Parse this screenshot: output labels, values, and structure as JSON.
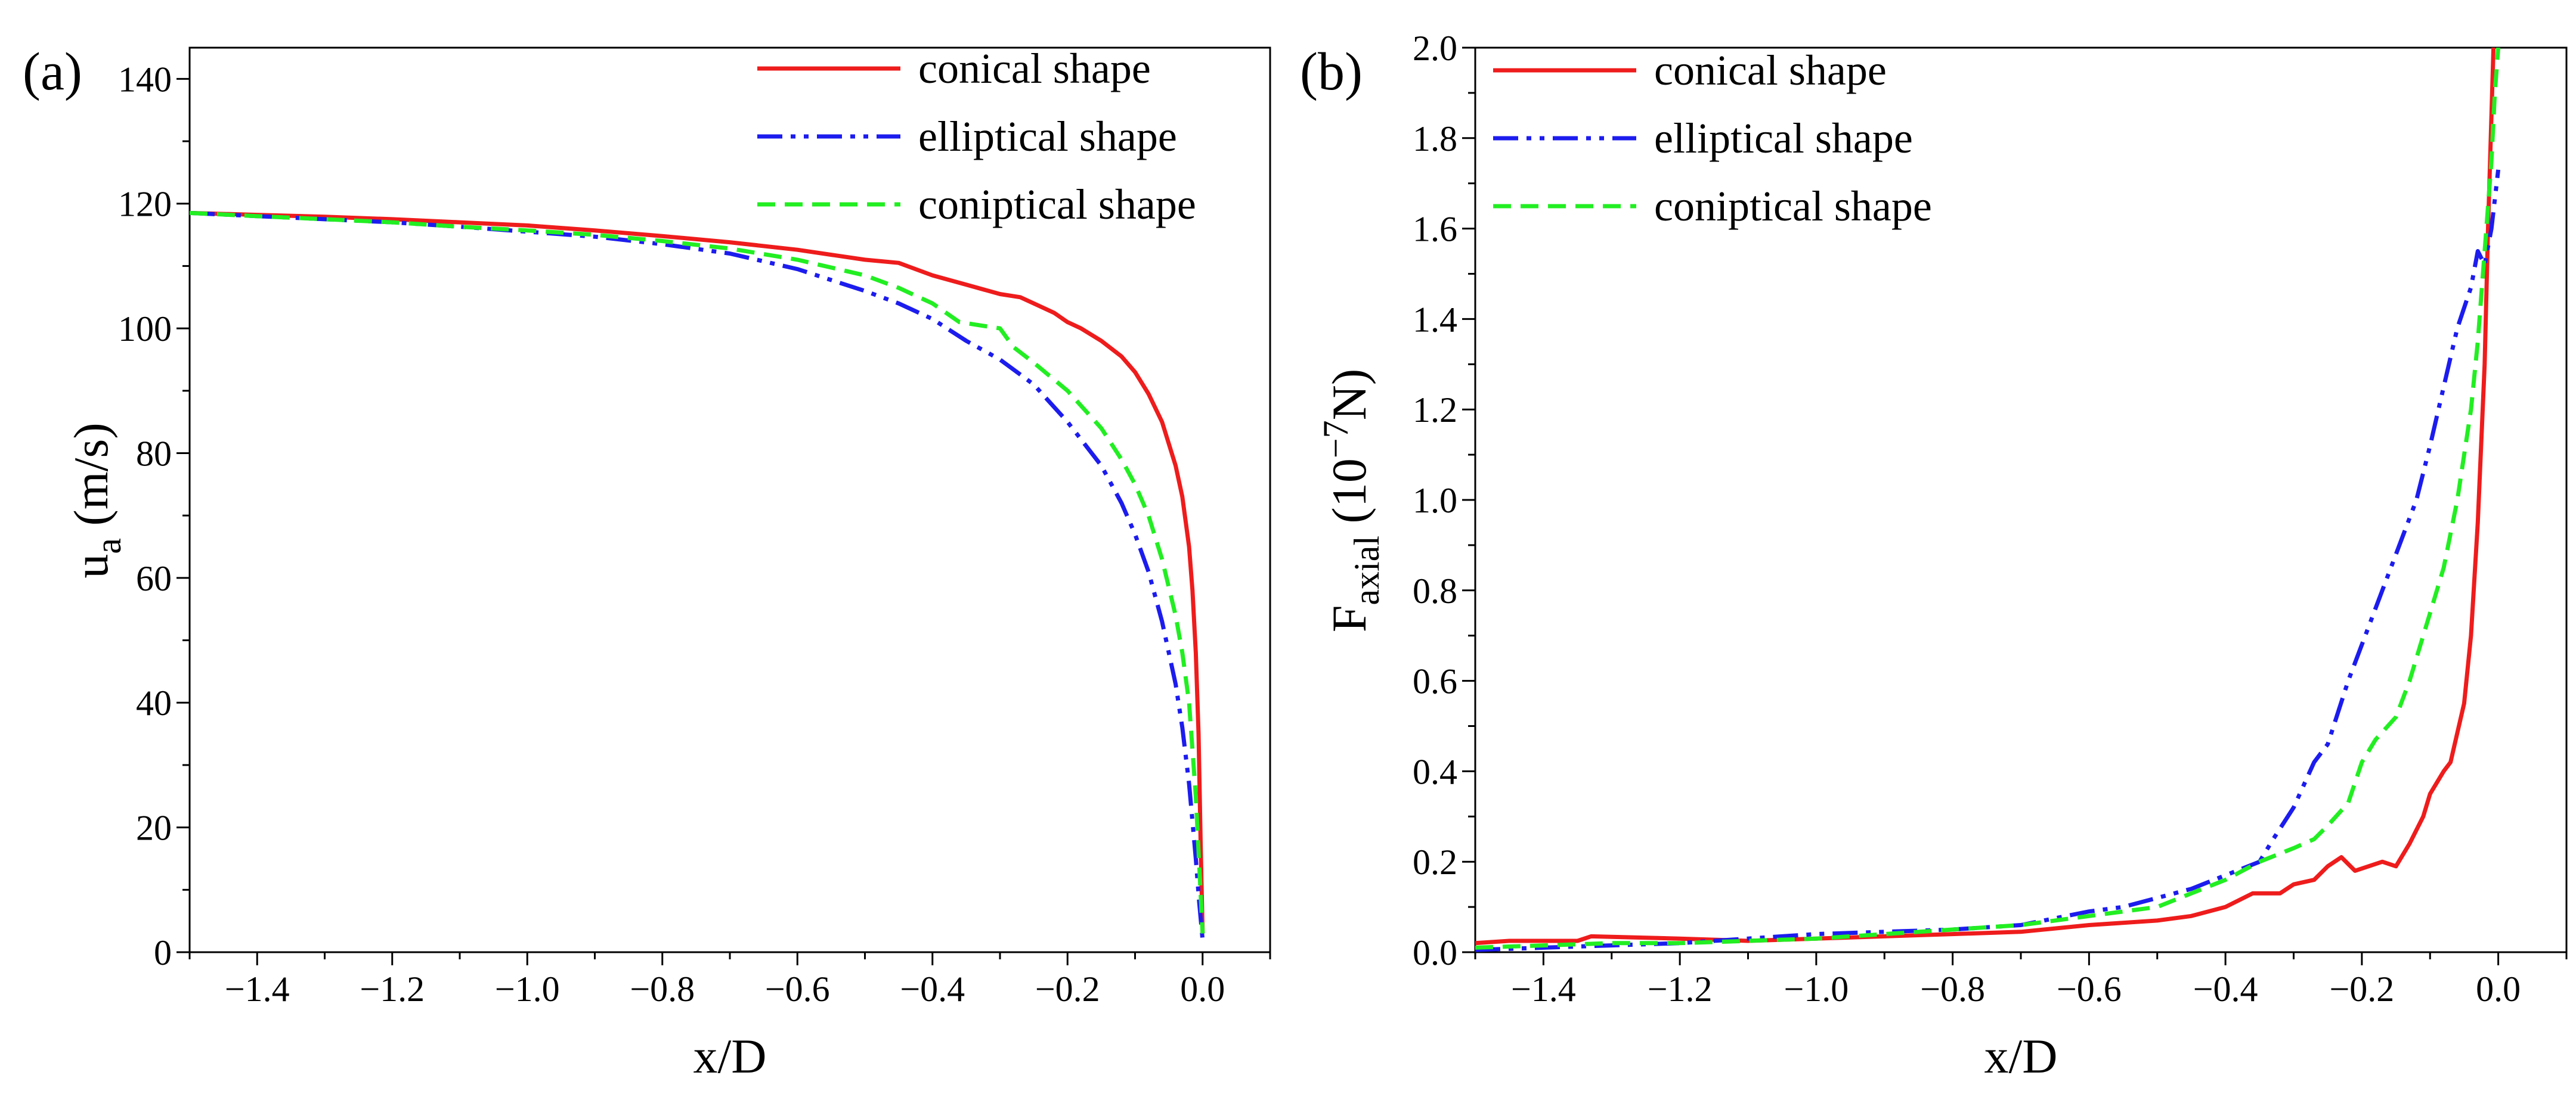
{
  "chart_data": [
    {
      "type": "line",
      "panel_label": "(a)",
      "xlabel": "x/D",
      "ylabel": "u",
      "ylabel_sub": "a",
      "ylabel_unit": " (m/s)",
      "xlim": [
        -1.5,
        0.1
      ],
      "ylim": [
        0,
        145
      ],
      "xticks": [
        -1.4,
        -1.2,
        -1.0,
        -0.8,
        -0.6,
        -0.4,
        -0.2,
        0.0
      ],
      "xtick_labels": [
        "−1.4",
        "−1.2",
        "−1.0",
        "−0.8",
        "−0.6",
        "−0.4",
        "−0.2",
        "0.0"
      ],
      "yticks": [
        0,
        20,
        40,
        60,
        80,
        100,
        120,
        140
      ],
      "ytick_labels": [
        "0",
        "20",
        "40",
        "60",
        "80",
        "100",
        "120",
        "140"
      ],
      "legend_position": "top-right",
      "series": [
        {
          "name": "conical shape",
          "color": "#ee1c1c",
          "dash": "solid",
          "points": [
            [
              -1.5,
              118.5
            ],
            [
              -1.4,
              118.2
            ],
            [
              -1.3,
              117.9
            ],
            [
              -1.2,
              117.5
            ],
            [
              -1.1,
              117
            ],
            [
              -1.0,
              116.5
            ],
            [
              -0.9,
              115.7
            ],
            [
              -0.8,
              114.8
            ],
            [
              -0.7,
              113.8
            ],
            [
              -0.6,
              112.6
            ],
            [
              -0.5,
              111
            ],
            [
              -0.45,
              110.5
            ],
            [
              -0.4,
              108.5
            ],
            [
              -0.35,
              107
            ],
            [
              -0.3,
              105.5
            ],
            [
              -0.27,
              105
            ],
            [
              -0.25,
              104
            ],
            [
              -0.22,
              102.5
            ],
            [
              -0.2,
              101
            ],
            [
              -0.18,
              100
            ],
            [
              -0.15,
              98
            ],
            [
              -0.12,
              95.5
            ],
            [
              -0.1,
              93
            ],
            [
              -0.08,
              89.5
            ],
            [
              -0.06,
              85
            ],
            [
              -0.04,
              78
            ],
            [
              -0.03,
              73
            ],
            [
              -0.02,
              65
            ],
            [
              -0.015,
              58
            ],
            [
              -0.01,
              48
            ],
            [
              -0.006,
              35
            ],
            [
              -0.003,
              18
            ],
            [
              0.0,
              3
            ]
          ]
        },
        {
          "name": "elliptical shape",
          "color": "#1c1cee",
          "dash": "dashdotdot",
          "points": [
            [
              -1.5,
              118.5
            ],
            [
              -1.4,
              118
            ],
            [
              -1.3,
              117.5
            ],
            [
              -1.2,
              117
            ],
            [
              -1.1,
              116.3
            ],
            [
              -1.0,
              115.5
            ],
            [
              -0.9,
              114.7
            ],
            [
              -0.8,
              113.5
            ],
            [
              -0.7,
              112
            ],
            [
              -0.6,
              109.5
            ],
            [
              -0.5,
              106
            ],
            [
              -0.45,
              104
            ],
            [
              -0.4,
              101.5
            ],
            [
              -0.35,
              98
            ],
            [
              -0.3,
              95
            ],
            [
              -0.25,
              91
            ],
            [
              -0.2,
              85
            ],
            [
              -0.15,
              78
            ],
            [
              -0.12,
              72
            ],
            [
              -0.1,
              67
            ],
            [
              -0.08,
              61
            ],
            [
              -0.06,
              53
            ],
            [
              -0.04,
              43
            ],
            [
              -0.03,
              36
            ],
            [
              -0.02,
              27
            ],
            [
              -0.01,
              15
            ],
            [
              -0.005,
              8
            ],
            [
              0.0,
              2
            ]
          ]
        },
        {
          "name": "coniptical shape",
          "color": "#22ee22",
          "dash": "dash",
          "points": [
            [
              -1.5,
              118.5
            ],
            [
              -1.4,
              118
            ],
            [
              -1.3,
              117.5
            ],
            [
              -1.2,
              117
            ],
            [
              -1.1,
              116.3
            ],
            [
              -1.0,
              115.7
            ],
            [
              -0.9,
              115
            ],
            [
              -0.8,
              114
            ],
            [
              -0.7,
              112.8
            ],
            [
              -0.6,
              111
            ],
            [
              -0.5,
              108.5
            ],
            [
              -0.45,
              106.5
            ],
            [
              -0.4,
              104
            ],
            [
              -0.36,
              101
            ],
            [
              -0.33,
              100.5
            ],
            [
              -0.3,
              100
            ],
            [
              -0.28,
              97
            ],
            [
              -0.25,
              94.5
            ],
            [
              -0.2,
              90
            ],
            [
              -0.15,
              84
            ],
            [
              -0.12,
              79
            ],
            [
              -0.1,
              75
            ],
            [
              -0.08,
              70
            ],
            [
              -0.06,
              63
            ],
            [
              -0.04,
              54
            ],
            [
              -0.03,
              48
            ],
            [
              -0.02,
              40
            ],
            [
              -0.01,
              25
            ],
            [
              -0.005,
              14
            ],
            [
              0.0,
              3
            ]
          ]
        }
      ]
    },
    {
      "type": "line",
      "panel_label": "(b)",
      "xlabel": "x/D",
      "ylabel": "F",
      "ylabel_sub": "axial",
      "ylabel_unit_pre": " (10",
      "ylabel_sup": "−7",
      "ylabel_unit_post": "N)",
      "xlim": [
        -1.5,
        0.1
      ],
      "ylim": [
        0,
        2.0
      ],
      "xticks": [
        -1.4,
        -1.2,
        -1.0,
        -0.8,
        -0.6,
        -0.4,
        -0.2,
        0.0
      ],
      "xtick_labels": [
        "−1.4",
        "−1.2",
        "−1.0",
        "−0.8",
        "−0.6",
        "−0.4",
        "−0.2",
        "0.0"
      ],
      "yticks": [
        0.0,
        0.2,
        0.4,
        0.6,
        0.8,
        1.0,
        1.2,
        1.4,
        1.6,
        1.8,
        2.0
      ],
      "ytick_labels": [
        "0.0",
        "0.2",
        "0.4",
        "0.6",
        "0.8",
        "1.0",
        "1.2",
        "1.4",
        "1.6",
        "1.8",
        "2.0"
      ],
      "legend_position": "top-left",
      "series": [
        {
          "name": "conical shape",
          "color": "#ee1c1c",
          "dash": "solid",
          "points": [
            [
              -1.5,
              0.02
            ],
            [
              -1.45,
              0.025
            ],
            [
              -1.4,
              0.025
            ],
            [
              -1.35,
              0.025
            ],
            [
              -1.33,
              0.035
            ],
            [
              -1.2,
              0.03
            ],
            [
              -1.1,
              0.025
            ],
            [
              -1.0,
              0.03
            ],
            [
              -0.9,
              0.035
            ],
            [
              -0.8,
              0.04
            ],
            [
              -0.7,
              0.045
            ],
            [
              -0.6,
              0.06
            ],
            [
              -0.5,
              0.07
            ],
            [
              -0.45,
              0.08
            ],
            [
              -0.4,
              0.1
            ],
            [
              -0.36,
              0.13
            ],
            [
              -0.32,
              0.13
            ],
            [
              -0.3,
              0.15
            ],
            [
              -0.27,
              0.16
            ],
            [
              -0.25,
              0.19
            ],
            [
              -0.23,
              0.21
            ],
            [
              -0.21,
              0.18
            ],
            [
              -0.19,
              0.19
            ],
            [
              -0.17,
              0.2
            ],
            [
              -0.15,
              0.19
            ],
            [
              -0.13,
              0.24
            ],
            [
              -0.11,
              0.3
            ],
            [
              -0.1,
              0.35
            ],
            [
              -0.08,
              0.4
            ],
            [
              -0.07,
              0.42
            ],
            [
              -0.05,
              0.55
            ],
            [
              -0.04,
              0.7
            ],
            [
              -0.03,
              0.95
            ],
            [
              -0.02,
              1.3
            ],
            [
              -0.015,
              1.6
            ],
            [
              -0.01,
              1.85
            ],
            [
              -0.007,
              2.0
            ]
          ]
        },
        {
          "name": "elliptical shape",
          "color": "#1c1cee",
          "dash": "dashdotdot",
          "points": [
            [
              -1.5,
              0.005
            ],
            [
              -1.4,
              0.01
            ],
            [
              -1.3,
              0.015
            ],
            [
              -1.2,
              0.02
            ],
            [
              -1.1,
              0.03
            ],
            [
              -1.0,
              0.04
            ],
            [
              -0.9,
              0.045
            ],
            [
              -0.8,
              0.05
            ],
            [
              -0.7,
              0.06
            ],
            [
              -0.6,
              0.09
            ],
            [
              -0.55,
              0.1
            ],
            [
              -0.5,
              0.12
            ],
            [
              -0.45,
              0.14
            ],
            [
              -0.4,
              0.17
            ],
            [
              -0.35,
              0.2
            ],
            [
              -0.33,
              0.25
            ],
            [
              -0.3,
              0.32
            ],
            [
              -0.27,
              0.42
            ],
            [
              -0.25,
              0.46
            ],
            [
              -0.22,
              0.6
            ],
            [
              -0.2,
              0.68
            ],
            [
              -0.17,
              0.8
            ],
            [
              -0.15,
              0.88
            ],
            [
              -0.12,
              1.0
            ],
            [
              -0.1,
              1.12
            ],
            [
              -0.08,
              1.25
            ],
            [
              -0.06,
              1.38
            ],
            [
              -0.04,
              1.47
            ],
            [
              -0.03,
              1.55
            ],
            [
              -0.02,
              1.52
            ],
            [
              -0.01,
              1.6
            ],
            [
              0.0,
              1.73
            ]
          ]
        },
        {
          "name": "coniptical shape",
          "color": "#22ee22",
          "dash": "dash",
          "points": [
            [
              -1.5,
              0.01
            ],
            [
              -1.4,
              0.015
            ],
            [
              -1.3,
              0.02
            ],
            [
              -1.2,
              0.02
            ],
            [
              -1.1,
              0.025
            ],
            [
              -1.0,
              0.03
            ],
            [
              -0.9,
              0.04
            ],
            [
              -0.8,
              0.05
            ],
            [
              -0.7,
              0.06
            ],
            [
              -0.6,
              0.08
            ],
            [
              -0.5,
              0.1
            ],
            [
              -0.45,
              0.13
            ],
            [
              -0.4,
              0.16
            ],
            [
              -0.35,
              0.2
            ],
            [
              -0.3,
              0.23
            ],
            [
              -0.27,
              0.25
            ],
            [
              -0.25,
              0.28
            ],
            [
              -0.22,
              0.33
            ],
            [
              -0.2,
              0.42
            ],
            [
              -0.18,
              0.47
            ],
            [
              -0.15,
              0.52
            ],
            [
              -0.13,
              0.6
            ],
            [
              -0.1,
              0.75
            ],
            [
              -0.08,
              0.85
            ],
            [
              -0.06,
              1.0
            ],
            [
              -0.04,
              1.2
            ],
            [
              -0.03,
              1.35
            ],
            [
              -0.02,
              1.55
            ],
            [
              -0.01,
              1.75
            ],
            [
              -0.005,
              1.9
            ],
            [
              0.0,
              2.0
            ]
          ]
        }
      ]
    }
  ]
}
